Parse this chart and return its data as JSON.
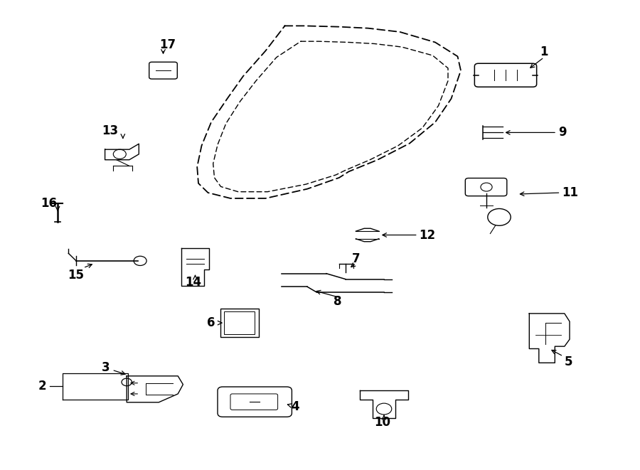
{
  "bg_color": "#ffffff",
  "line_color": "#000000",
  "door_outer": {
    "x": [
      0.455,
      0.63,
      0.72,
      0.7,
      0.66,
      0.59,
      0.53,
      0.395,
      0.315,
      0.305,
      0.315,
      0.345,
      0.38,
      0.455
    ],
    "y": [
      0.95,
      0.95,
      0.88,
      0.78,
      0.67,
      0.59,
      0.56,
      0.56,
      0.6,
      0.65,
      0.75,
      0.83,
      0.87,
      0.95
    ]
  },
  "door_inner": {
    "x": [
      0.49,
      0.61,
      0.68,
      0.665,
      0.625,
      0.565,
      0.52,
      0.415,
      0.365,
      0.358,
      0.37,
      0.395,
      0.43,
      0.49
    ],
    "y": [
      0.915,
      0.915,
      0.86,
      0.775,
      0.69,
      0.62,
      0.593,
      0.593,
      0.62,
      0.665,
      0.752,
      0.818,
      0.85,
      0.915
    ]
  },
  "label_fontsize": 12,
  "arrow_lw": 0.9,
  "arrow_ms": 10
}
